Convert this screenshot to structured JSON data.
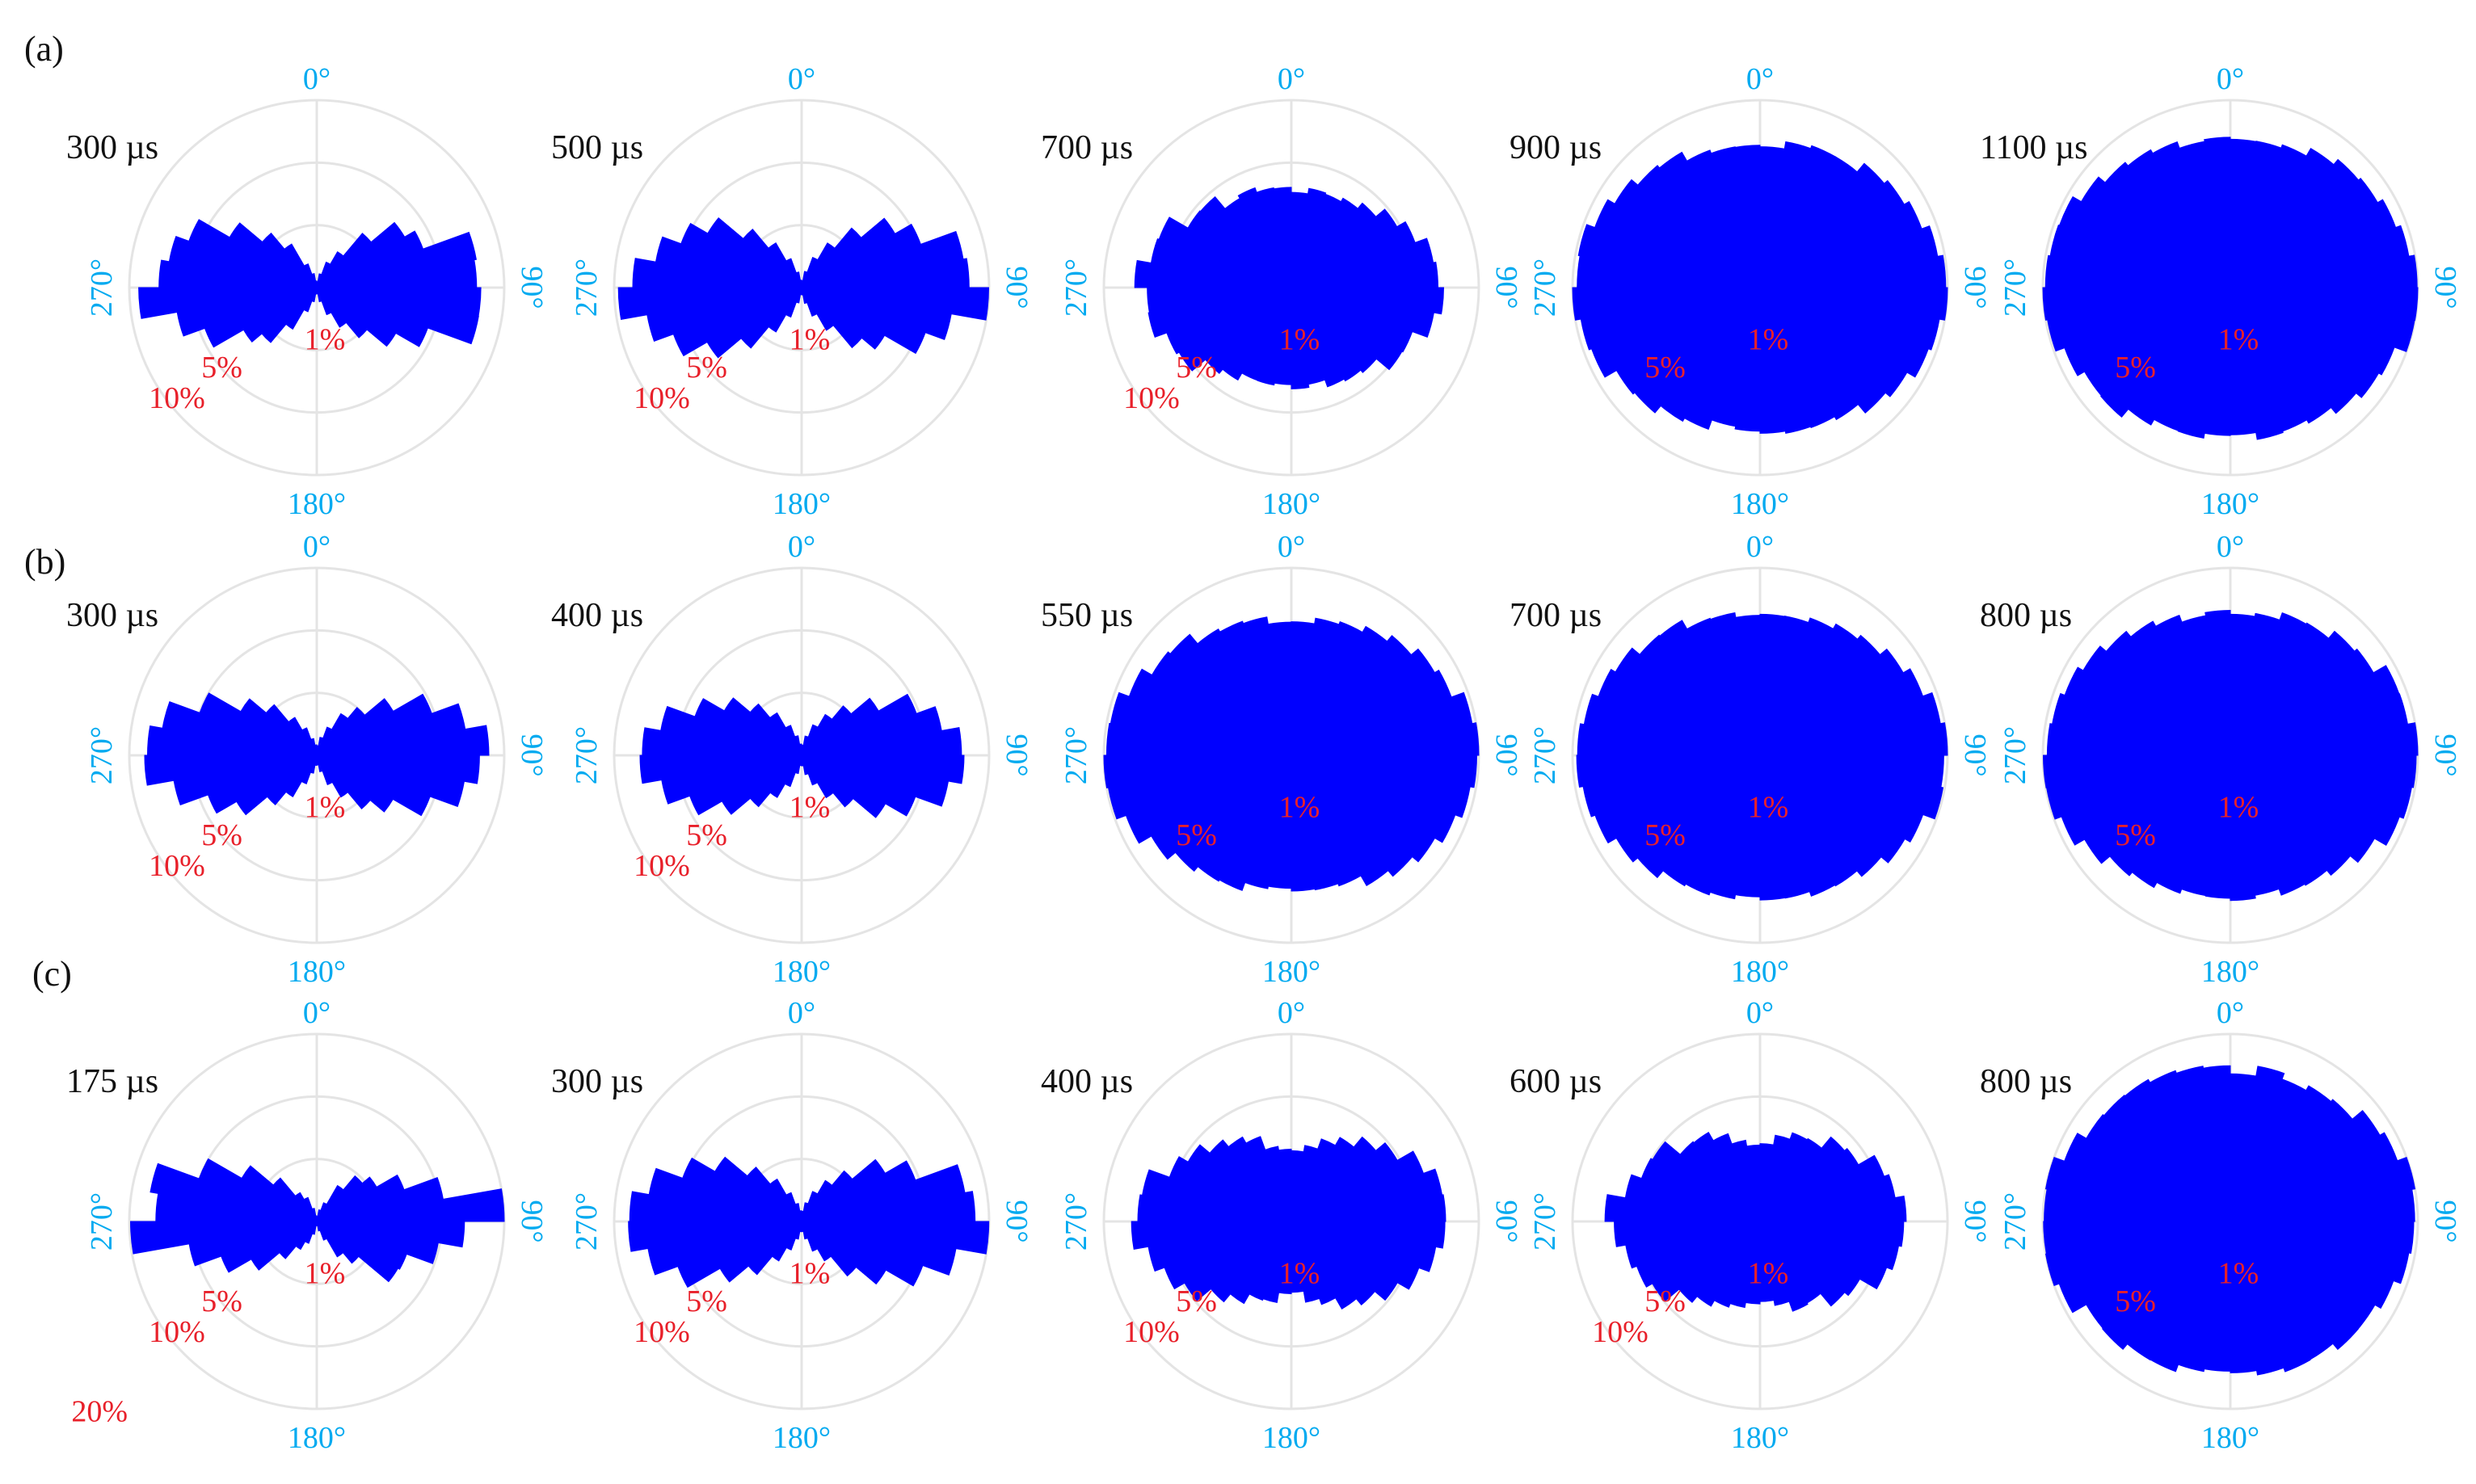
{
  "figure": {
    "colors": {
      "bars": "#0000ff",
      "grid": "#e4e4e4",
      "angle_labels": "#00aaf0",
      "ring_labels": "#e8202a",
      "text": "#111111"
    },
    "rows": [
      {
        "label": "(a)"
      },
      {
        "label": "(b)"
      },
      {
        "label": "(c)"
      }
    ]
  },
  "chart_data": [
    {
      "type": "polar-histogram",
      "row": "(a)",
      "time_label": "300 µs",
      "angle_labels": [
        "0°",
        "90°",
        "180°",
        "270°"
      ],
      "ring_labels": [
        "1%",
        "5%",
        "10%"
      ],
      "grid": true,
      "radial_max": 10,
      "shape": {
        "pattern": "bowtie",
        "width": 0.95,
        "height": 0.48,
        "dip": 0.05,
        "rough": 0.22,
        "seed": 11
      }
    },
    {
      "type": "polar-histogram",
      "row": "(a)",
      "time_label": "500 µs",
      "angle_labels": [
        "0°",
        "90°",
        "180°",
        "270°"
      ],
      "ring_labels": [
        "1%",
        "5%",
        "10%"
      ],
      "grid": true,
      "radial_max": 10,
      "shape": {
        "pattern": "bowtie",
        "width": 0.95,
        "height": 0.55,
        "dip": 0.05,
        "rough": 0.16,
        "seed": 23
      }
    },
    {
      "type": "polar-histogram",
      "row": "(a)",
      "time_label": "700 µs",
      "angle_labels": [
        "0°",
        "90°",
        "180°",
        "270°"
      ],
      "ring_labels": [
        "1%",
        "5%",
        "10%"
      ],
      "grid": true,
      "radial_max": 10,
      "shape": {
        "pattern": "ellipse",
        "width": 0.8,
        "height": 0.52,
        "dip": 1,
        "rough": 0.1,
        "seed": 37
      }
    },
    {
      "type": "polar-histogram",
      "row": "(a)",
      "time_label": "900 µs",
      "angle_labels": [
        "0°",
        "90°",
        "180°",
        "270°"
      ],
      "ring_labels": [
        "1%",
        "5%"
      ],
      "grid": true,
      "radial_max": 5,
      "shape": {
        "pattern": "ellipse",
        "width": 1.0,
        "height": 0.76,
        "dip": 1,
        "rough": 0.05,
        "seed": 41
      }
    },
    {
      "type": "polar-histogram",
      "row": "(a)",
      "time_label": "1100 µs",
      "angle_labels": [
        "0°",
        "90°",
        "180°",
        "270°"
      ],
      "ring_labels": [
        "1%",
        "5%"
      ],
      "grid": true,
      "radial_max": 5,
      "shape": {
        "pattern": "ellipse",
        "width": 1.0,
        "height": 0.8,
        "dip": 1,
        "rough": 0.05,
        "seed": 53
      }
    },
    {
      "type": "polar-histogram",
      "row": "(b)",
      "time_label": "300 µs",
      "angle_labels": [
        "0°",
        "90°",
        "180°",
        "270°"
      ],
      "ring_labels": [
        "1%",
        "5%",
        "10%"
      ],
      "grid": true,
      "radial_max": 10,
      "shape": {
        "pattern": "bowtie",
        "width": 0.93,
        "height": 0.45,
        "dip": 0.1,
        "rough": 0.12,
        "seed": 61
      }
    },
    {
      "type": "polar-histogram",
      "row": "(b)",
      "time_label": "400 µs",
      "angle_labels": [
        "0°",
        "90°",
        "180°",
        "270°"
      ],
      "ring_labels": [
        "1%",
        "5%",
        "10%"
      ],
      "grid": true,
      "radial_max": 10,
      "shape": {
        "pattern": "bowtie",
        "width": 0.85,
        "height": 0.48,
        "dip": 0.1,
        "rough": 0.12,
        "seed": 73
      }
    },
    {
      "type": "polar-histogram",
      "row": "(b)",
      "time_label": "550 µs",
      "angle_labels": [
        "0°",
        "90°",
        "180°",
        "270°"
      ],
      "ring_labels": [
        "1%",
        "5%"
      ],
      "grid": true,
      "radial_max": 5,
      "shape": {
        "pattern": "ellipse",
        "width": 1.0,
        "height": 0.72,
        "dip": 1,
        "rough": 0.05,
        "seed": 83
      }
    },
    {
      "type": "polar-histogram",
      "row": "(b)",
      "time_label": "700 µs",
      "angle_labels": [
        "0°",
        "90°",
        "180°",
        "270°"
      ],
      "ring_labels": [
        "1%",
        "5%"
      ],
      "grid": true,
      "radial_max": 5,
      "shape": {
        "pattern": "ellipse",
        "width": 1.0,
        "height": 0.76,
        "dip": 1,
        "rough": 0.05,
        "seed": 97
      }
    },
    {
      "type": "polar-histogram",
      "row": "(b)",
      "time_label": "800 µs",
      "angle_labels": [
        "0°",
        "90°",
        "180°",
        "270°"
      ],
      "ring_labels": [
        "1%",
        "5%"
      ],
      "grid": true,
      "radial_max": 5,
      "shape": {
        "pattern": "ellipse",
        "width": 1.0,
        "height": 0.76,
        "dip": 1,
        "rough": 0.05,
        "seed": 101
      }
    },
    {
      "type": "polar-histogram",
      "row": "(c)",
      "time_label": "175 µs",
      "angle_labels": [
        "0°",
        "90°",
        "180°",
        "270°"
      ],
      "ring_labels": [
        "1%",
        "5%",
        "10%",
        "20%"
      ],
      "grid": true,
      "radial_max": 20,
      "shape": {
        "pattern": "bowtie",
        "width": 0.95,
        "height": 0.38,
        "dip": 0.05,
        "rough": 0.35,
        "seed": 113
      }
    },
    {
      "type": "polar-histogram",
      "row": "(c)",
      "time_label": "300 µs",
      "angle_labels": [
        "0°",
        "90°",
        "180°",
        "270°"
      ],
      "ring_labels": [
        "1%",
        "5%",
        "10%"
      ],
      "grid": true,
      "radial_max": 10,
      "shape": {
        "pattern": "bowtie",
        "width": 0.98,
        "height": 0.47,
        "dip": 0.1,
        "rough": 0.1,
        "seed": 127
      }
    },
    {
      "type": "polar-histogram",
      "row": "(c)",
      "time_label": "400 µs",
      "angle_labels": [
        "0°",
        "90°",
        "180°",
        "270°"
      ],
      "ring_labels": [
        "1%",
        "5%",
        "10%"
      ],
      "grid": true,
      "radial_max": 10,
      "shape": {
        "pattern": "ellipse",
        "width": 0.86,
        "height": 0.5,
        "dip": 0.7,
        "rough": 0.1,
        "seed": 131
      }
    },
    {
      "type": "polar-histogram",
      "row": "(c)",
      "time_label": "600 µs",
      "angle_labels": [
        "0°",
        "90°",
        "180°",
        "270°"
      ],
      "ring_labels": [
        "1%",
        "5%",
        "10%"
      ],
      "grid": true,
      "radial_max": 10,
      "shape": {
        "pattern": "ellipse",
        "width": 0.8,
        "height": 0.5,
        "dip": 0.8,
        "rough": 0.1,
        "seed": 149
      }
    },
    {
      "type": "polar-histogram",
      "row": "(c)",
      "time_label": "800 µs",
      "angle_labels": [
        "0°",
        "90°",
        "180°",
        "270°"
      ],
      "ring_labels": [
        "1%",
        "5%"
      ],
      "grid": true,
      "radial_max": 5,
      "shape": {
        "pattern": "ellipse",
        "width": 1.0,
        "height": 0.8,
        "dip": 1,
        "rough": 0.08,
        "seed": 151
      }
    }
  ]
}
